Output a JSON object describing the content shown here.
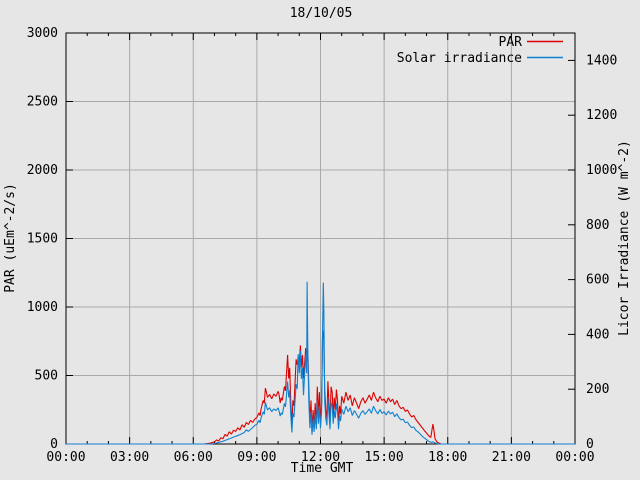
{
  "colors": {
    "background": "#e6e6e6",
    "grid": "#a9a9a9",
    "axis": "#000000",
    "par_red": "#dd0000",
    "solar_blue": "#1080d0"
  },
  "chart_data": {
    "type": "line",
    "title": "18/10/05",
    "xlabel": "Time GMT",
    "ylabel_left": "PAR (uEm^-2/s)",
    "ylabel_right": "Licor Irradiance (W m^-2)",
    "xlim_hours": [
      0,
      24
    ],
    "x_major_step_hours": 3,
    "x_minor_step_hours": 1,
    "x_ticks": [
      {
        "hour": 0,
        "label": "00:00"
      },
      {
        "hour": 3,
        "label": "03:00"
      },
      {
        "hour": 6,
        "label": "06:00"
      },
      {
        "hour": 9,
        "label": "09:00"
      },
      {
        "hour": 12,
        "label": "12:00"
      },
      {
        "hour": 15,
        "label": "15:00"
      },
      {
        "hour": 18,
        "label": "18:00"
      },
      {
        "hour": 21,
        "label": "21:00"
      },
      {
        "hour": 24,
        "label": "00:00"
      }
    ],
    "ylim_left": [
      0,
      3000
    ],
    "y_left_ticks": [
      0,
      500,
      1000,
      1500,
      2000,
      2500,
      3000
    ],
    "ylim_right": [
      0,
      1500
    ],
    "y_right_ticks": [
      0,
      200,
      400,
      600,
      800,
      1000,
      1200,
      1400
    ],
    "grid": {
      "vertical_hours": [
        3,
        6,
        9,
        12,
        15,
        18,
        21
      ],
      "horizontal_left_values": [
        500,
        1000,
        1500,
        2000,
        2500
      ]
    },
    "legend_position": "top-right-inside",
    "series": [
      {
        "name": "PAR",
        "axis": "left",
        "color": "#dd0000",
        "points": [
          [
            0,
            0
          ],
          [
            1,
            0
          ],
          [
            2,
            0
          ],
          [
            3,
            0
          ],
          [
            4,
            0
          ],
          [
            5,
            0
          ],
          [
            6,
            0
          ],
          [
            6.5,
            0
          ],
          [
            6.8,
            6
          ],
          [
            7.0,
            15
          ],
          [
            7.1,
            30
          ],
          [
            7.2,
            22
          ],
          [
            7.3,
            45
          ],
          [
            7.4,
            38
          ],
          [
            7.5,
            70
          ],
          [
            7.6,
            58
          ],
          [
            7.7,
            90
          ],
          [
            7.8,
            72
          ],
          [
            7.9,
            100
          ],
          [
            8.0,
            92
          ],
          [
            8.1,
            118
          ],
          [
            8.2,
            102
          ],
          [
            8.3,
            140
          ],
          [
            8.4,
            122
          ],
          [
            8.5,
            158
          ],
          [
            8.6,
            142
          ],
          [
            8.7,
            172
          ],
          [
            8.8,
            158
          ],
          [
            8.9,
            182
          ],
          [
            9.0,
            195
          ],
          [
            9.1,
            228
          ],
          [
            9.15,
            208
          ],
          [
            9.2,
            258
          ],
          [
            9.3,
            318
          ],
          [
            9.35,
            298
          ],
          [
            9.4,
            408
          ],
          [
            9.45,
            378
          ],
          [
            9.5,
            340
          ],
          [
            9.6,
            362
          ],
          [
            9.7,
            330
          ],
          [
            9.8,
            365
          ],
          [
            9.9,
            348
          ],
          [
            10.0,
            385
          ],
          [
            10.05,
            358
          ],
          [
            10.1,
            300
          ],
          [
            10.15,
            338
          ],
          [
            10.2,
            318
          ],
          [
            10.3,
            420
          ],
          [
            10.35,
            388
          ],
          [
            10.45,
            650
          ],
          [
            10.5,
            478
          ],
          [
            10.55,
            556
          ],
          [
            10.6,
            298
          ],
          [
            10.65,
            130
          ],
          [
            10.7,
            318
          ],
          [
            10.75,
            278
          ],
          [
            10.85,
            618
          ],
          [
            10.9,
            578
          ],
          [
            10.95,
            640
          ],
          [
            11.0,
            598
          ],
          [
            11.05,
            720
          ],
          [
            11.1,
            560
          ],
          [
            11.15,
            648
          ],
          [
            11.2,
            478
          ],
          [
            11.3,
            700
          ],
          [
            11.37,
            600
          ],
          [
            11.4,
            680
          ],
          [
            11.45,
            418
          ],
          [
            11.5,
            148
          ],
          [
            11.55,
            318
          ],
          [
            11.6,
            88
          ],
          [
            11.65,
            248
          ],
          [
            11.7,
            118
          ],
          [
            11.75,
            298
          ],
          [
            11.8,
            138
          ],
          [
            11.85,
            418
          ],
          [
            11.9,
            198
          ],
          [
            11.95,
            378
          ],
          [
            12.0,
            158
          ],
          [
            12.05,
            298
          ],
          [
            12.1,
            832
          ],
          [
            12.15,
            778
          ],
          [
            12.2,
            398
          ],
          [
            12.25,
            248
          ],
          [
            12.3,
            178
          ],
          [
            12.35,
            458
          ],
          [
            12.4,
            298
          ],
          [
            12.45,
            148
          ],
          [
            12.5,
            418
          ],
          [
            12.55,
            378
          ],
          [
            12.6,
            198
          ],
          [
            12.65,
            338
          ],
          [
            12.7,
            248
          ],
          [
            12.75,
            398
          ],
          [
            12.8,
            318
          ],
          [
            12.85,
            148
          ],
          [
            12.9,
            278
          ],
          [
            12.95,
            218
          ],
          [
            13.0,
            348
          ],
          [
            13.1,
            298
          ],
          [
            13.2,
            378
          ],
          [
            13.3,
            318
          ],
          [
            13.4,
            358
          ],
          [
            13.5,
            278
          ],
          [
            13.6,
            338
          ],
          [
            13.7,
            298
          ],
          [
            13.8,
            258
          ],
          [
            13.9,
            308
          ],
          [
            14.0,
            338
          ],
          [
            14.1,
            298
          ],
          [
            14.2,
            328
          ],
          [
            14.3,
            358
          ],
          [
            14.4,
            318
          ],
          [
            14.5,
            378
          ],
          [
            14.6,
            338
          ],
          [
            14.7,
            308
          ],
          [
            14.8,
            348
          ],
          [
            14.9,
            318
          ],
          [
            15.0,
            328
          ],
          [
            15.1,
            298
          ],
          [
            15.2,
            338
          ],
          [
            15.3,
            308
          ],
          [
            15.4,
            328
          ],
          [
            15.5,
            288
          ],
          [
            15.6,
            318
          ],
          [
            15.7,
            278
          ],
          [
            15.8,
            258
          ],
          [
            15.9,
            268
          ],
          [
            16.0,
            238
          ],
          [
            16.1,
            248
          ],
          [
            16.2,
            218
          ],
          [
            16.3,
            198
          ],
          [
            16.4,
            208
          ],
          [
            16.5,
            178
          ],
          [
            16.6,
            158
          ],
          [
            16.7,
            138
          ],
          [
            16.8,
            118
          ],
          [
            16.9,
            98
          ],
          [
            17.0,
            80
          ],
          [
            17.1,
            60
          ],
          [
            17.2,
            48
          ],
          [
            17.3,
            145
          ],
          [
            17.35,
            98
          ],
          [
            17.4,
            38
          ],
          [
            17.5,
            14
          ],
          [
            17.6,
            5
          ],
          [
            17.7,
            0
          ],
          [
            18.0,
            0
          ],
          [
            19,
            0
          ],
          [
            20,
            0
          ],
          [
            21,
            0
          ],
          [
            22,
            0
          ],
          [
            23,
            0
          ],
          [
            24,
            0
          ]
        ]
      },
      {
        "name": "Solar irradiance",
        "axis": "right",
        "color": "#1080d0",
        "points": [
          [
            0,
            0
          ],
          [
            1,
            0
          ],
          [
            2,
            0
          ],
          [
            3,
            0
          ],
          [
            4,
            0
          ],
          [
            5,
            0
          ],
          [
            6,
            0
          ],
          [
            6.8,
            0
          ],
          [
            7.0,
            2
          ],
          [
            7.2,
            6
          ],
          [
            7.4,
            10
          ],
          [
            7.6,
            16
          ],
          [
            7.8,
            22
          ],
          [
            8.0,
            28
          ],
          [
            8.2,
            34
          ],
          [
            8.4,
            42
          ],
          [
            8.5,
            52
          ],
          [
            8.6,
            46
          ],
          [
            8.8,
            60
          ],
          [
            8.9,
            68
          ],
          [
            9.0,
            72
          ],
          [
            9.1,
            86
          ],
          [
            9.15,
            78
          ],
          [
            9.2,
            96
          ],
          [
            9.3,
            118
          ],
          [
            9.35,
            108
          ],
          [
            9.4,
            152
          ],
          [
            9.45,
            138
          ],
          [
            9.5,
            124
          ],
          [
            9.6,
            132
          ],
          [
            9.7,
            118
          ],
          [
            9.8,
            128
          ],
          [
            9.9,
            122
          ],
          [
            10.0,
            132
          ],
          [
            10.05,
            120
          ],
          [
            10.1,
            102
          ],
          [
            10.15,
            114
          ],
          [
            10.2,
            108
          ],
          [
            10.3,
            148
          ],
          [
            10.35,
            136
          ],
          [
            10.45,
            228
          ],
          [
            10.5,
            170
          ],
          [
            10.55,
            196
          ],
          [
            10.6,
            104
          ],
          [
            10.65,
            42
          ],
          [
            10.7,
            112
          ],
          [
            10.75,
            98
          ],
          [
            10.85,
            218
          ],
          [
            10.9,
            202
          ],
          [
            10.95,
            328
          ],
          [
            11.0,
            258
          ],
          [
            11.05,
            340
          ],
          [
            11.1,
            238
          ],
          [
            11.15,
            278
          ],
          [
            11.2,
            178
          ],
          [
            11.3,
            330
          ],
          [
            11.35,
            258
          ],
          [
            11.37,
            592
          ],
          [
            11.4,
            348
          ],
          [
            11.45,
            158
          ],
          [
            11.5,
            58
          ],
          [
            11.55,
            118
          ],
          [
            11.6,
            34
          ],
          [
            11.65,
            92
          ],
          [
            11.7,
            44
          ],
          [
            11.75,
            108
          ],
          [
            11.8,
            54
          ],
          [
            11.85,
            158
          ],
          [
            11.9,
            74
          ],
          [
            11.95,
            138
          ],
          [
            12.0,
            58
          ],
          [
            12.05,
            118
          ],
          [
            12.1,
            420
          ],
          [
            12.13,
            589
          ],
          [
            12.16,
            478
          ],
          [
            12.2,
            158
          ],
          [
            12.25,
            92
          ],
          [
            12.3,
            68
          ],
          [
            12.35,
            168
          ],
          [
            12.4,
            108
          ],
          [
            12.45,
            54
          ],
          [
            12.5,
            152
          ],
          [
            12.55,
            138
          ],
          [
            12.6,
            74
          ],
          [
            12.65,
            122
          ],
          [
            12.7,
            94
          ],
          [
            12.75,
            148
          ],
          [
            12.8,
            118
          ],
          [
            12.85,
            54
          ],
          [
            12.9,
            104
          ],
          [
            12.95,
            84
          ],
          [
            13.0,
            128
          ],
          [
            13.1,
            108
          ],
          [
            13.2,
            138
          ],
          [
            13.3,
            118
          ],
          [
            13.4,
            132
          ],
          [
            13.5,
            104
          ],
          [
            13.6,
            122
          ],
          [
            13.7,
            108
          ],
          [
            13.8,
            94
          ],
          [
            13.9,
            112
          ],
          [
            14.0,
            122
          ],
          [
            14.1,
            108
          ],
          [
            14.2,
            118
          ],
          [
            14.3,
            128
          ],
          [
            14.4,
            112
          ],
          [
            14.5,
            138
          ],
          [
            14.6,
            122
          ],
          [
            14.7,
            110
          ],
          [
            14.8,
            126
          ],
          [
            14.9,
            112
          ],
          [
            15.0,
            118
          ],
          [
            15.1,
            106
          ],
          [
            15.2,
            120
          ],
          [
            15.3,
            110
          ],
          [
            15.4,
            116
          ],
          [
            15.5,
            100
          ],
          [
            15.6,
            110
          ],
          [
            15.7,
            96
          ],
          [
            15.8,
            88
          ],
          [
            15.9,
            90
          ],
          [
            16.0,
            78
          ],
          [
            16.1,
            80
          ],
          [
            16.2,
            68
          ],
          [
            16.3,
            60
          ],
          [
            16.4,
            62
          ],
          [
            16.5,
            50
          ],
          [
            16.6,
            44
          ],
          [
            16.7,
            36
          ],
          [
            16.8,
            28
          ],
          [
            16.9,
            22
          ],
          [
            17.0,
            16
          ],
          [
            17.1,
            10
          ],
          [
            17.2,
            6
          ],
          [
            17.3,
            8
          ],
          [
            17.4,
            4
          ],
          [
            17.5,
            1
          ],
          [
            17.6,
            0
          ],
          [
            18,
            0
          ],
          [
            19,
            0
          ],
          [
            20,
            0
          ],
          [
            21,
            0
          ],
          [
            22,
            0
          ],
          [
            23,
            0
          ],
          [
            24,
            0
          ]
        ]
      }
    ]
  }
}
